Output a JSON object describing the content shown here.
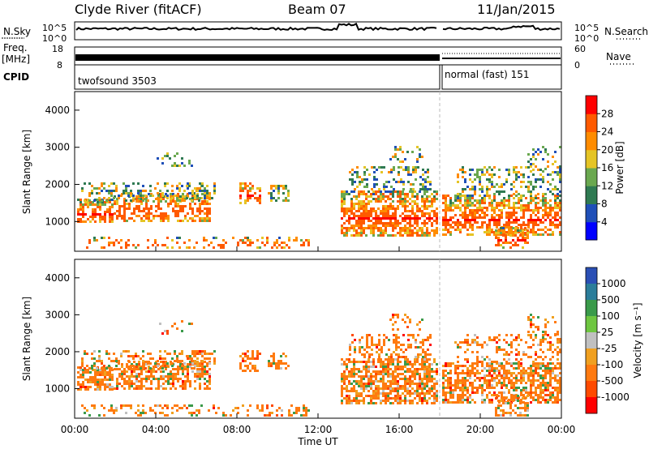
{
  "header": {
    "title": "Clyde River (fitACF)",
    "beam": "Beam 07",
    "date": "11/Jan/2015"
  },
  "noise_panel": {
    "left_label": "N.Sky",
    "right_label": "N.Search",
    "left_ticks": [
      "10^5",
      "10^0"
    ],
    "right_ticks": [
      "10^5",
      "10^0"
    ]
  },
  "freq_panel": {
    "left_label_1": "Freq.",
    "left_label_2": "[MHz]",
    "right_label": "Nave",
    "left_ticks": [
      "18",
      "8"
    ],
    "right_ticks": [
      "60",
      "0"
    ]
  },
  "cpid_panel": {
    "label": "CPID",
    "segments": [
      "twofsound 3503",
      "normal (fast) 151"
    ]
  },
  "colors": {
    "power": [
      "#0000ff",
      "#1f4fb8",
      "#2f7a52",
      "#6aa84f",
      "#e5c425",
      "#ff8c00",
      "#ff5a00",
      "#ff0000"
    ],
    "velocity": [
      "#2a4fb5",
      "#2b7d9a",
      "#3a9a4a",
      "#6ec640",
      "#c0c0c0",
      "#f0a020",
      "#ff7a10",
      "#ff4a00",
      "#ff0000"
    ]
  },
  "chart_data": [
    {
      "type": "heatmap",
      "name": "power",
      "ylabel": "Slant Range [km]",
      "yticks": [
        "1000",
        "2000",
        "3000",
        "4000"
      ],
      "ylim": [
        200,
        4500
      ],
      "colorbar_label": "Power [dB]",
      "colorbar_ticks": [
        "4",
        "8",
        "12",
        "16",
        "20",
        "24",
        "28"
      ],
      "colorbar_range": [
        0,
        32
      ]
    },
    {
      "type": "heatmap",
      "name": "velocity",
      "ylabel": "Slant Range [km]",
      "yticks": [
        "1000",
        "2000",
        "3000",
        "4000"
      ],
      "ylim": [
        200,
        4500
      ],
      "colorbar_label": "Velocity [m s⁻¹]",
      "colorbar_ticks": [
        "1000",
        "500",
        "100",
        "25",
        "-25",
        "-100",
        "-500",
        "-1000"
      ]
    }
  ],
  "xaxis": {
    "label": "Time UT",
    "ticks": [
      "00:00",
      "04:00",
      "08:00",
      "12:00",
      "16:00",
      "20:00",
      "00:00"
    ]
  }
}
